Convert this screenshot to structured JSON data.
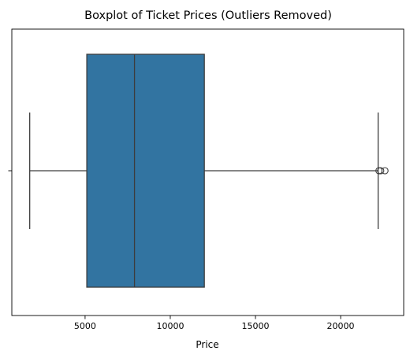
{
  "chart_data": {
    "type": "boxplot",
    "title": "Boxplot of Ticket Prices (Outliers Removed)",
    "xlabel": "Price",
    "ylabel": "",
    "xlim": [
      700,
      23700
    ],
    "x_ticks": [
      5000,
      10000,
      15000,
      20000
    ],
    "x_tick_labels": [
      "5000",
      "10000",
      "15000",
      "20000"
    ],
    "grid": false,
    "series": [
      {
        "whisker_low": 1750,
        "q1": 5100,
        "median": 7900,
        "q3": 12000,
        "whisker_high": 22200,
        "outliers": [
          22250,
          22350,
          22600
        ],
        "box_color": "#3274a1",
        "line_color": "#3d3d3d"
      }
    ]
  }
}
